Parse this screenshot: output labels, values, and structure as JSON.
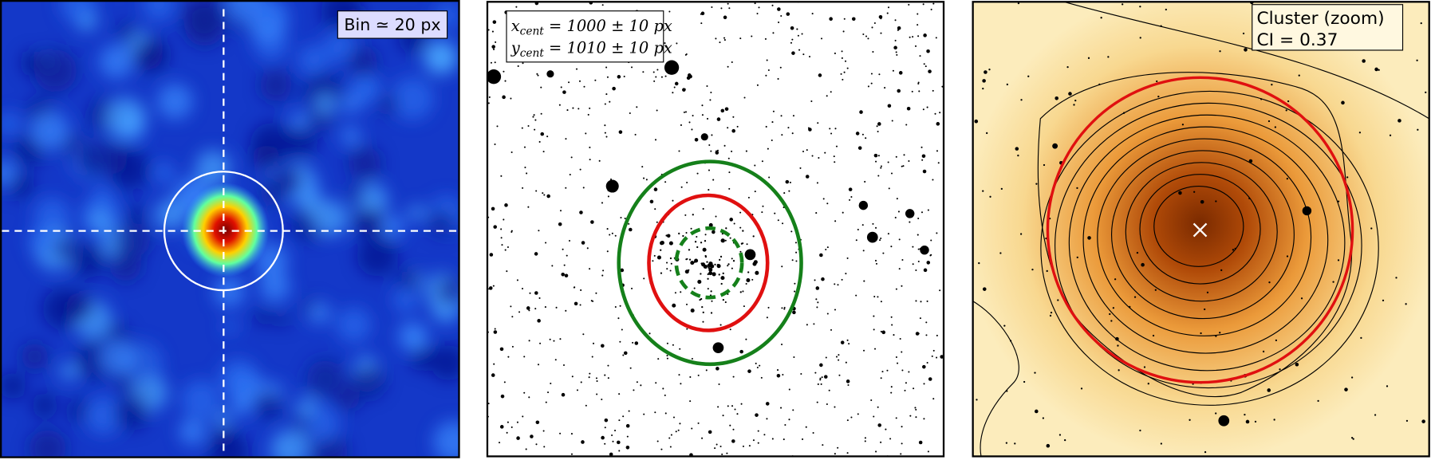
{
  "panels": [
    {
      "label": "Bin ≃ 20 px"
    },
    {
      "lines": [
        {
          "symbol": "x",
          "subscript": "cent",
          "text": " = 1000 ± 10 px"
        },
        {
          "symbol": "y",
          "subscript": "cent",
          "text": " = 1010 ± 10 px"
        }
      ]
    },
    {
      "lines": [
        "Cluster (zoom)",
        "CI = 0.37"
      ]
    }
  ]
}
